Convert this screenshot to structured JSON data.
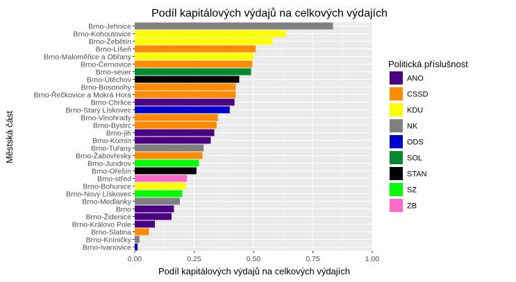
{
  "chart_data": {
    "type": "bar",
    "orientation": "horizontal",
    "title": "Podíl kapitálových výdajů na celkových výdajích",
    "xlabel": "Podíl kapitálových výdajů na celkových výdajích",
    "ylabel": "Městská část",
    "xlim": [
      0,
      1
    ],
    "xticks": [
      "0.00",
      "0.25",
      "0.50",
      "0.75",
      "1.00"
    ],
    "grid": true,
    "legend_placement": "right",
    "legend": {
      "title": "Politická příslušnost",
      "entries": [
        {
          "label": "ANO",
          "color": "#4B0082"
        },
        {
          "label": "CSSD",
          "color": "#FF8C00"
        },
        {
          "label": "KDU",
          "color": "#FFFF00"
        },
        {
          "label": "NK",
          "color": "#808080"
        },
        {
          "label": "ODS",
          "color": "#0000CD"
        },
        {
          "label": "SOL",
          "color": "#008B30"
        },
        {
          "label": "STAN",
          "color": "#000000"
        },
        {
          "label": "SZ",
          "color": "#00FF00"
        },
        {
          "label": "ZB",
          "color": "#FF69C8"
        }
      ]
    },
    "bars": [
      {
        "category": "Brno-Jehnice",
        "value": 0.835,
        "party": "NK"
      },
      {
        "category": "Brno-Kohoutovice",
        "value": 0.635,
        "party": "KDU"
      },
      {
        "category": "Brno-Žebětín",
        "value": 0.58,
        "party": "KDU"
      },
      {
        "category": "Brno-Líšeň",
        "value": 0.51,
        "party": "CSSD"
      },
      {
        "category": "Brno-Maloměřice a Obřany",
        "value": 0.5,
        "party": "KDU"
      },
      {
        "category": "Brno-Černovice",
        "value": 0.495,
        "party": "CSSD"
      },
      {
        "category": "Brno-sever",
        "value": 0.49,
        "party": "SOL"
      },
      {
        "category": "Brno-Útěchov",
        "value": 0.44,
        "party": "STAN"
      },
      {
        "category": "Brno-Bosonohy",
        "value": 0.425,
        "party": "CSSD"
      },
      {
        "category": "Brno-Řečkovice a Mokrá Hora",
        "value": 0.425,
        "party": "CSSD"
      },
      {
        "category": "Brno-Chrlice",
        "value": 0.42,
        "party": "ANO"
      },
      {
        "category": "Brno-Starý Lískovec",
        "value": 0.4,
        "party": "ODS"
      },
      {
        "category": "Brno-Vinohrady",
        "value": 0.35,
        "party": "CSSD"
      },
      {
        "category": "Brno-Bystrc",
        "value": 0.345,
        "party": "CSSD"
      },
      {
        "category": "Brno-jih",
        "value": 0.335,
        "party": "ANO"
      },
      {
        "category": "Brno-Komín",
        "value": 0.32,
        "party": "ANO"
      },
      {
        "category": "Brno-Tuřany",
        "value": 0.29,
        "party": "NK"
      },
      {
        "category": "Brno-Žabovřesky",
        "value": 0.285,
        "party": "CSSD"
      },
      {
        "category": "Brno-Jundrov",
        "value": 0.27,
        "party": "SZ"
      },
      {
        "category": "Brno-Ořešín",
        "value": 0.26,
        "party": "STAN"
      },
      {
        "category": "Brno-střed",
        "value": 0.22,
        "party": "ZB"
      },
      {
        "category": "Brno-Bohunice",
        "value": 0.215,
        "party": "KDU"
      },
      {
        "category": "Brno-Nový Lískovec",
        "value": 0.2,
        "party": "SZ"
      },
      {
        "category": "Brno-Medlánky",
        "value": 0.19,
        "party": "NK"
      },
      {
        "category": "Brno",
        "value": 0.165,
        "party": "ANO"
      },
      {
        "category": "Brno-Židenice",
        "value": 0.155,
        "party": "ANO"
      },
      {
        "category": "Brno-Královo Pole",
        "value": 0.085,
        "party": "ANO"
      },
      {
        "category": "Brno-Slatina",
        "value": 0.06,
        "party": "CSSD"
      },
      {
        "category": "Brno-Kníničky",
        "value": 0.02,
        "party": "NK"
      },
      {
        "category": "Brno-Ivanovice",
        "value": 0.012,
        "party": "ODS"
      }
    ]
  }
}
